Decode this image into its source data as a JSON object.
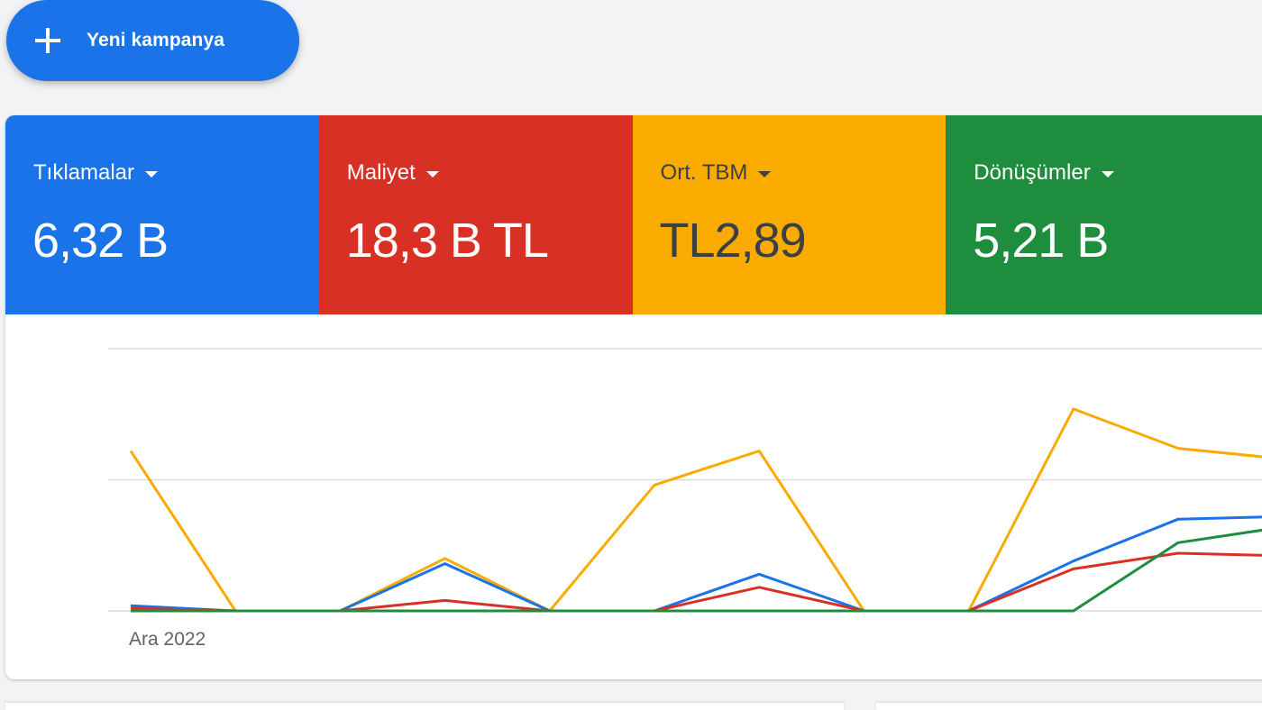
{
  "new_campaign": {
    "label": "Yeni kampanya",
    "icon": "plus-icon"
  },
  "metrics": [
    {
      "label": "Tıklamalar",
      "value": "6,32 B",
      "color": "#1a73e8"
    },
    {
      "label": "Maliyet",
      "value": "18,3 B TL",
      "color": "#d93025"
    },
    {
      "label": "Ort. TBM",
      "value": "TL2,89",
      "color": "#f9ab00"
    },
    {
      "label": "Dönüşümler",
      "value": "5,21 B",
      "color": "#1e8e3e"
    }
  ],
  "chart_data": {
    "type": "line",
    "x": [
      0,
      1,
      2,
      3,
      4,
      5,
      6,
      7,
      8,
      9,
      10,
      11
    ],
    "x_tick_labels": [
      {
        "index": 0,
        "label": "Ara 2022"
      }
    ],
    "ylim": [
      0,
      100
    ],
    "grid": true,
    "series": [
      {
        "color": "#f9ab00",
        "values": [
          61,
          0,
          0,
          20,
          0,
          48,
          61,
          0,
          0,
          77,
          62,
          58
        ]
      },
      {
        "color": "#1a73e8",
        "values": [
          2,
          0,
          0,
          18,
          0,
          0,
          14,
          0,
          0,
          19,
          35,
          36
        ]
      },
      {
        "color": "#d93025",
        "values": [
          1,
          0,
          0,
          4,
          0,
          0,
          9,
          0,
          0,
          16,
          22,
          21
        ]
      },
      {
        "color": "#1e8e3e",
        "values": [
          0,
          0,
          0,
          0,
          0,
          0,
          0,
          0,
          0,
          0,
          26,
          32
        ]
      }
    ]
  }
}
